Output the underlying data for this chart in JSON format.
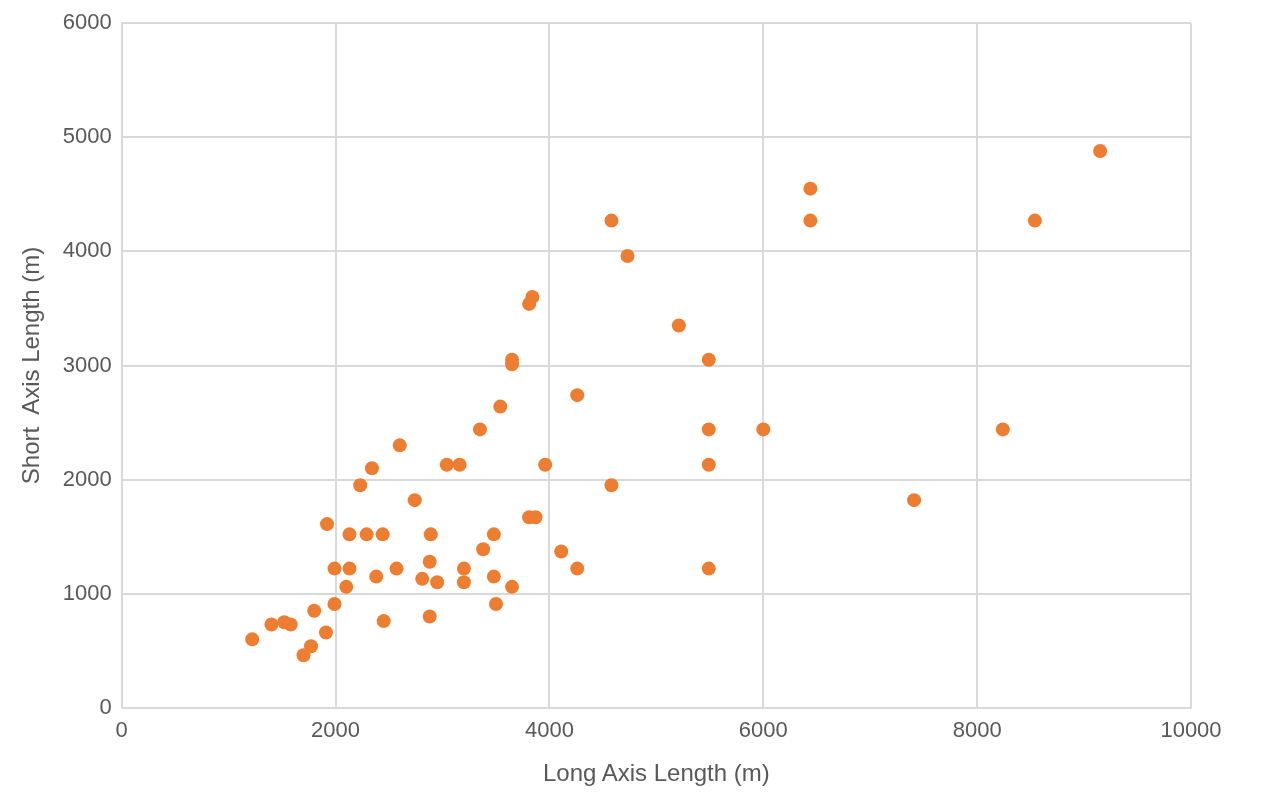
{
  "chart_data": {
    "type": "scatter",
    "xlabel": "Long Axis Length (m)",
    "ylabel": "Short  Axis Length (m)",
    "xlim": [
      0,
      10000
    ],
    "xticks": [
      0,
      2000,
      4000,
      6000,
      8000,
      10000
    ],
    "ylim": [
      0,
      6000
    ],
    "yticks": [
      0,
      1000,
      2000,
      3000,
      4000,
      5000,
      6000
    ],
    "grid": true,
    "legend": false,
    "marker": "circle",
    "series": [
      {
        "color": "#ed7d31",
        "x": [
          1220,
          1400,
          1520,
          1580,
          1800,
          1770,
          1700,
          1910,
          1990,
          1920,
          1990,
          2130,
          2100,
          2130,
          2290,
          2440,
          2230,
          2340,
          2600,
          2380,
          2450,
          2570,
          2740,
          2810,
          2880,
          2890,
          2950,
          2880,
          3040,
          3160,
          3200,
          3200,
          3350,
          3380,
          3480,
          3480,
          3500,
          3540,
          3650,
          3650,
          3650,
          3810,
          3840,
          3810,
          3870,
          3960,
          4110,
          4260,
          4260,
          4580,
          4580,
          4730,
          5210,
          5490,
          5490,
          5490,
          5490,
          6000,
          6440,
          6440,
          7410,
          8240,
          8540,
          9150
        ],
        "values": [
          600,
          730,
          750,
          730,
          850,
          540,
          460,
          660,
          910,
          1610,
          1220,
          1220,
          1060,
          1520,
          1520,
          1520,
          1950,
          2100,
          2300,
          1150,
          760,
          1220,
          1820,
          1130,
          1280,
          1520,
          1100,
          800,
          2130,
          2130,
          1220,
          1100,
          2440,
          1390,
          1520,
          1150,
          910,
          2640,
          3050,
          3010,
          1060,
          3540,
          3600,
          1670,
          1670,
          2130,
          1370,
          2740,
          1220,
          4270,
          1950,
          3960,
          3350,
          3050,
          2440,
          2130,
          1220,
          2440,
          4550,
          4270,
          1820,
          2440,
          4270,
          4880
        ]
      }
    ]
  }
}
